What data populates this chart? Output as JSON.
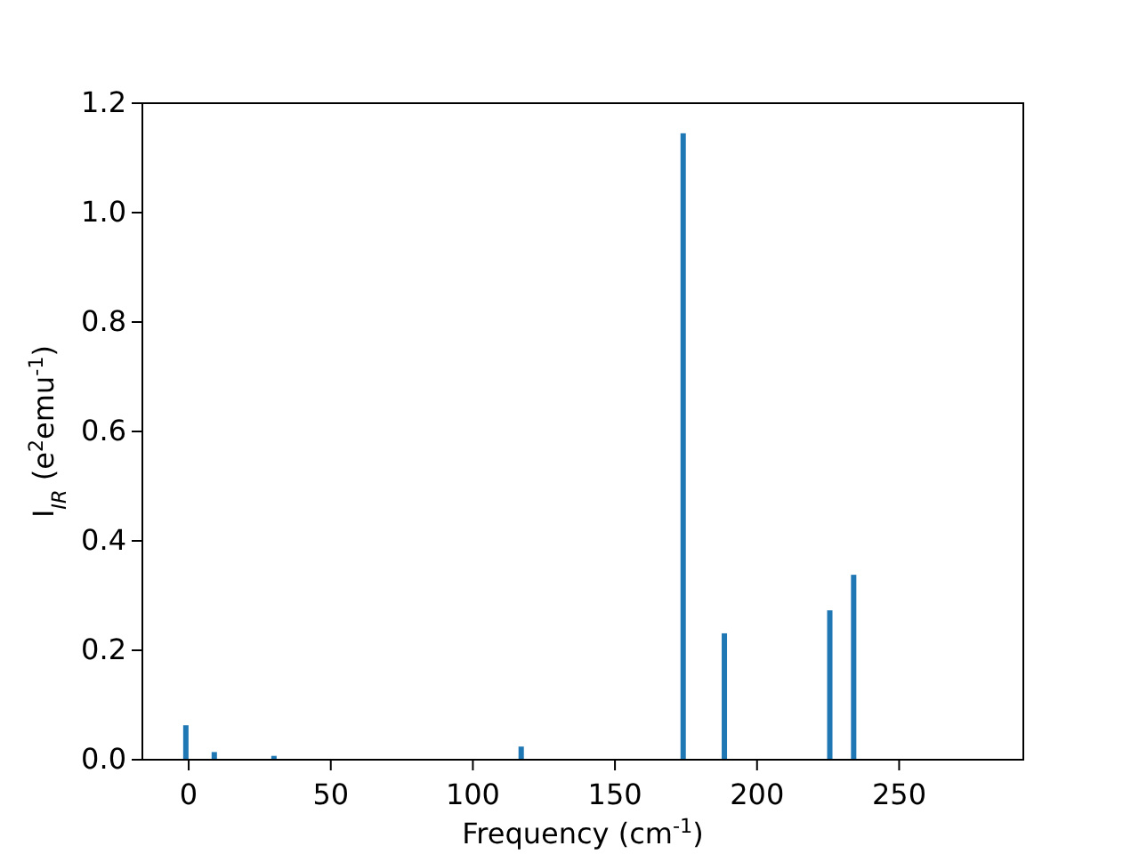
{
  "chart_data": {
    "type": "bar",
    "xlabel": "Frequency (cm$^{-1}$)",
    "ylabel": "I$_{IR}$ (e$^{2}$emu$^{-1}$)",
    "x": [
      -1,
      9,
      30,
      117,
      174,
      188.5,
      225.6,
      234
    ],
    "values": [
      0.063,
      0.014,
      0.007,
      0.024,
      1.145,
      0.231,
      0.273,
      0.338
    ],
    "color": "#1f77b4",
    "xlim": [
      -16.3,
      293.7
    ],
    "xticks": [
      0,
      50,
      100,
      150,
      200,
      250
    ],
    "ylim": [
      0,
      1.2
    ],
    "yticks": [
      {
        "value": 0,
        "label": "0.0"
      },
      {
        "value": 0.2,
        "label": "0.2"
      },
      {
        "value": 0.4,
        "label": "0.4"
      },
      {
        "value": 0.6,
        "label": "0.6"
      },
      {
        "value": 0.8,
        "label": "0.8"
      },
      {
        "value": 1.0,
        "label": "1.0"
      },
      {
        "value": 1.2,
        "label": "1.2"
      }
    ],
    "grid": false
  }
}
